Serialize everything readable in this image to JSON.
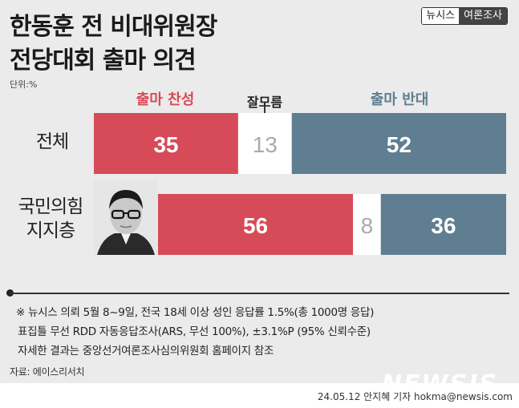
{
  "title_line1": "한동훈 전 비대위원장",
  "title_line2": "전당대회 출마 의견",
  "badge": {
    "left": "뉴시스",
    "right": "여론조사"
  },
  "unit": "단위:%",
  "chart_data": {
    "type": "bar",
    "stacked": true,
    "orientation": "horizontal",
    "categories": [
      "전체",
      "국민의힘\n지지층"
    ],
    "series": [
      {
        "name": "출마 찬성",
        "values": [
          35,
          56
        ],
        "color": "#d64b57"
      },
      {
        "name": "잘모름",
        "values": [
          13,
          8
        ],
        "color": "#ffffff"
      },
      {
        "name": "출마 반대",
        "values": [
          52,
          36
        ],
        "color": "#5f7e91"
      }
    ],
    "xlim": [
      0,
      100
    ]
  },
  "row_labels": {
    "all": "전체",
    "ppp_line1": "국민의힘",
    "ppp_line2": "지지층"
  },
  "headers": {
    "favor": "출마 찬성",
    "dk": "잘모름",
    "oppose": "출마 반대"
  },
  "notes": {
    "line1": "※ 뉴시스 의뢰 5월 8~9일, 전국 18세 이상 성인 응답률 1.5%(총 1000명 응답)",
    "line2": "표집틀 무선 RDD 자동응답조사(ARS, 무선 100%), ±3.1%P (95% 신뢰수준)",
    "line3": "자세한 결과는 중앙선거여론조사심의위원회 홈페이지 참조"
  },
  "source": "자료: 에이스리서치",
  "logo": "NEWSIS",
  "credit": "24.05.12 안지혜 기자 hokma@newsis.com"
}
